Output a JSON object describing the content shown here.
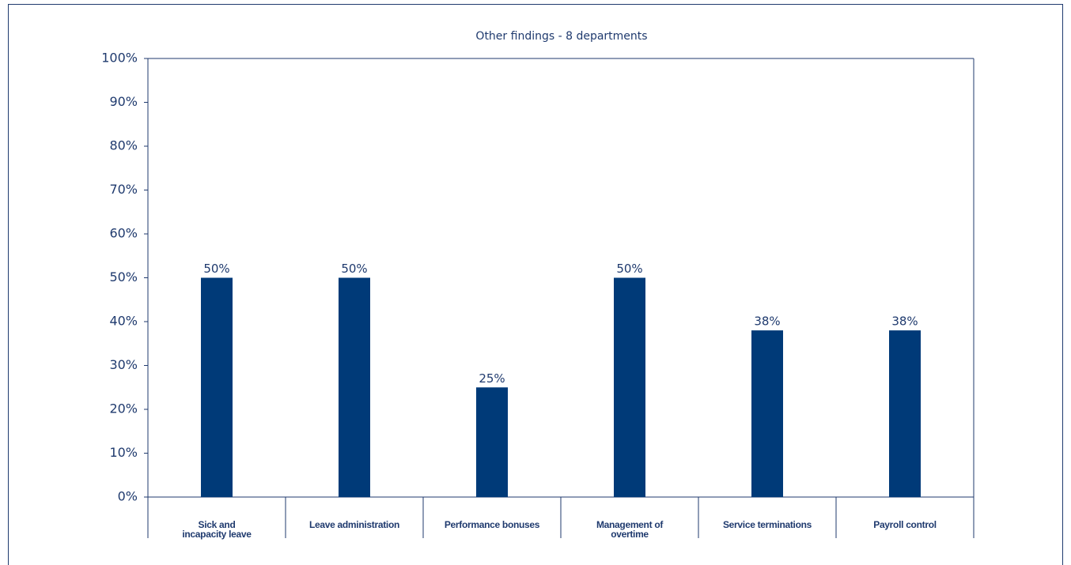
{
  "chart_data": {
    "type": "bar",
    "title": "Other findings - 8 departments",
    "categories": [
      "Sick and\nincapacity leave",
      "Leave administration",
      "Performance bonuses",
      "Management of\novertime",
      "Service terminations",
      "Payroll control"
    ],
    "values": [
      50,
      50,
      25,
      50,
      38,
      38
    ],
    "value_labels": [
      "50%",
      "50%",
      "25%",
      "50%",
      "38%",
      "38%"
    ],
    "color": "#003a78",
    "ylim": [
      0,
      100
    ],
    "yticks": [
      {
        "value": 0,
        "label": "0%"
      },
      {
        "value": 10,
        "label": "10%"
      },
      {
        "value": 20,
        "label": "20%"
      },
      {
        "value": 30,
        "label": "30%"
      },
      {
        "value": 40,
        "label": "40%"
      },
      {
        "value": 50,
        "label": "50%"
      },
      {
        "value": 60,
        "label": "60%"
      },
      {
        "value": 70,
        "label": "70%"
      },
      {
        "value": 80,
        "label": "80%"
      },
      {
        "value": 90,
        "label": "90%"
      },
      {
        "value": 100,
        "label": "100%"
      }
    ],
    "grid": false
  }
}
